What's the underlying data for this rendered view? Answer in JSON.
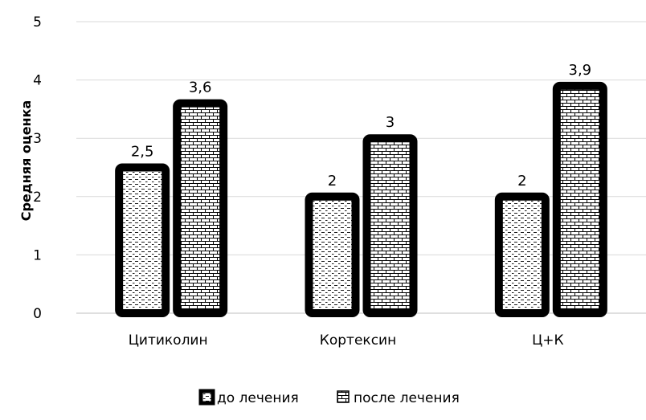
{
  "chart_data": {
    "type": "bar",
    "title": "",
    "xlabel": "",
    "ylabel": "Средняя оценка",
    "ylim": [
      0,
      5
    ],
    "yticks": [
      "0",
      "1",
      "2",
      "3",
      "4",
      "5"
    ],
    "grid": true,
    "legend_position": "bottom",
    "categories": [
      "Цитиколин",
      "Кортексин",
      "Ц+К"
    ],
    "series": [
      {
        "name": "до лечения",
        "values": [
          2.5,
          2,
          2
        ],
        "labels": [
          "2,5",
          "2",
          "2"
        ],
        "pattern": "dashed-dots"
      },
      {
        "name": "после лечения",
        "values": [
          3.6,
          3,
          3.9
        ],
        "labels": [
          "3,6",
          "3",
          "3,9"
        ],
        "pattern": "brick"
      }
    ],
    "colors": {
      "bar_border": "#000000",
      "grid": "#d9d9d9",
      "fill": "#ffffff"
    }
  }
}
